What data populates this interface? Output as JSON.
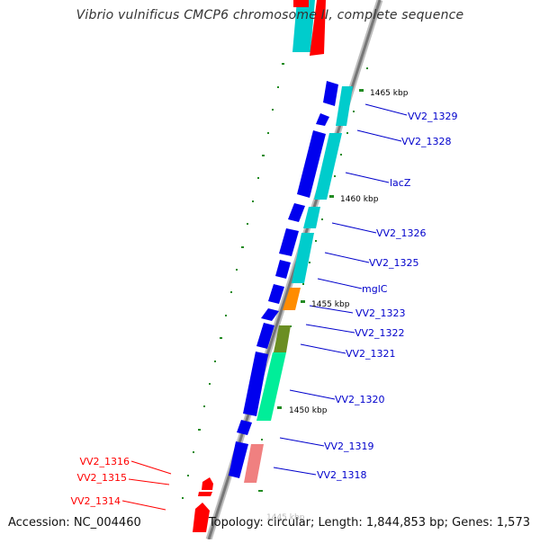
{
  "title": "Vibrio vulnificus CMCP6 chromosome II, complete sequence",
  "accession": "Accession: NC_004460",
  "topology": "Topology: circular; Length: 1,844,853 bp; Genes: 1,573",
  "colors": {
    "backbone": "#8c8c8c",
    "label_right": "#0000cc",
    "label_left": "#ff0000",
    "tick": "#228b22",
    "cds_blue": "#0000ee",
    "cds_cyan": "#00cccc",
    "cds_red": "#ff0000",
    "cds_orange": "#ff8c00",
    "cds_olive": "#6b8e23",
    "cds_mint": "#00ee99",
    "cds_pink": "#f08080"
  },
  "kbp_marks": [
    "1465 kbp",
    "1460 kbp",
    "1455 kbp",
    "1450 kbp",
    "1445 kbp"
  ],
  "gene_labels_right": [
    "VV2_1329",
    "VV2_1328",
    "lacZ",
    "VV2_1326",
    "VV2_1325",
    "mglC",
    "VV2_1323",
    "VV2_1322",
    "VV2_1321",
    "VV2_1320",
    "VV2_1319",
    "VV2_1318"
  ],
  "gene_labels_left": [
    "VV2_1316",
    "VV2_1315",
    "VV2_1314"
  ]
}
